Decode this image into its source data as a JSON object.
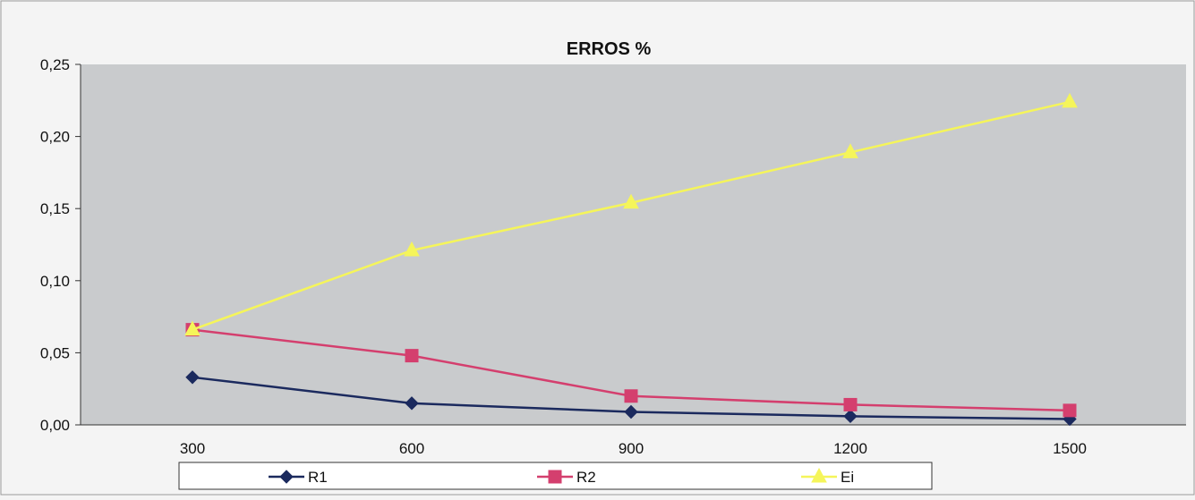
{
  "chart_data": {
    "type": "line",
    "title": "ERROS %",
    "xlabel": "",
    "ylabel": "",
    "categories": [
      "300",
      "600",
      "900",
      "1200",
      "1500"
    ],
    "y_ticks": [
      "0,00",
      "0,05",
      "0,10",
      "0,15",
      "0,20",
      "0,25"
    ],
    "ylim": [
      0,
      0.25
    ],
    "grid": false,
    "legend_position": "bottom",
    "series": [
      {
        "name": "R1",
        "values": [
          0.033,
          0.015,
          0.009,
          0.006,
          0.004
        ],
        "color": "#1b2a5e",
        "marker": "diamond"
      },
      {
        "name": "R2",
        "values": [
          0.066,
          0.048,
          0.02,
          0.014,
          0.01
        ],
        "color": "#d43f6e",
        "marker": "square"
      },
      {
        "name": "Ei",
        "values": [
          0.066,
          0.121,
          0.154,
          0.189,
          0.224
        ],
        "color": "#f5f55a",
        "marker": "triangle"
      }
    ],
    "colors": {
      "plot_background": "#c9cbcd",
      "page_background": "#f4f4f4"
    }
  }
}
